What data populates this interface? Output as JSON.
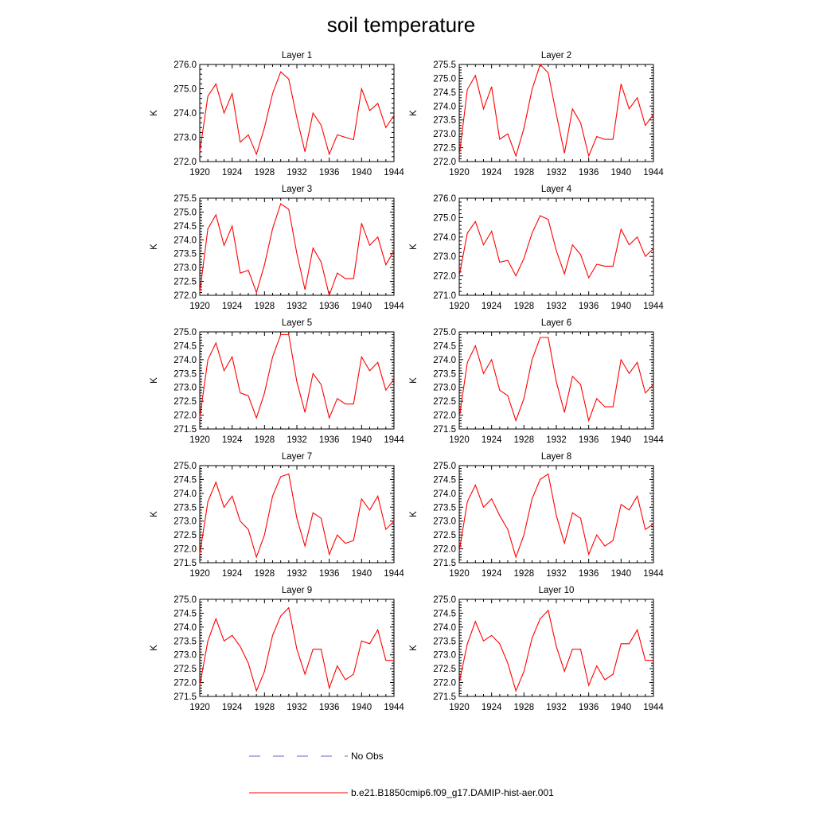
{
  "title": "soil temperature",
  "legend": [
    {
      "label": "No Obs",
      "color": "#6666cc",
      "style": "dashed"
    },
    {
      "label": "b.e21.B1850cmip6.f09_g17.DAMIP-hist-aer.001",
      "color": "#ff0000",
      "style": "solid"
    }
  ],
  "chart_data": [
    {
      "type": "line",
      "title": "Layer 1",
      "ylabel": "K",
      "xlim": [
        1920,
        1944
      ],
      "ylim": [
        272.0,
        276.0
      ],
      "xticks": [
        "1920",
        "1924",
        "1928",
        "1932",
        "1936",
        "1940",
        "1944"
      ],
      "yticks": [
        "272.0",
        "273.0",
        "274.0",
        "275.0",
        "276.0"
      ],
      "x": [
        1920,
        1921,
        1922,
        1923,
        1924,
        1925,
        1926,
        1927,
        1928,
        1929,
        1930,
        1931,
        1932,
        1933,
        1934,
        1935,
        1936,
        1937,
        1938,
        1939,
        1940,
        1941,
        1942,
        1943,
        1944
      ],
      "series": [
        {
          "name": "b.e21.B1850cmip6.f09_g17.DAMIP-hist-aer.001",
          "values": [
            272.4,
            274.7,
            275.2,
            274.0,
            274.8,
            272.8,
            273.1,
            272.3,
            273.4,
            274.8,
            275.7,
            275.4,
            273.8,
            272.4,
            274.0,
            273.5,
            272.3,
            273.1,
            273.0,
            272.9,
            275.0,
            274.1,
            274.4,
            273.4,
            273.9
          ]
        }
      ]
    },
    {
      "type": "line",
      "title": "Layer 2",
      "ylabel": "K",
      "xlim": [
        1920,
        1944
      ],
      "ylim": [
        272.0,
        275.5
      ],
      "xticks": [
        "1920",
        "1924",
        "1928",
        "1932",
        "1936",
        "1940",
        "1944"
      ],
      "yticks": [
        "272.0",
        "272.5",
        "273.0",
        "273.5",
        "274.0",
        "274.5",
        "275.0",
        "275.5"
      ],
      "x": [
        1920,
        1921,
        1922,
        1923,
        1924,
        1925,
        1926,
        1927,
        1928,
        1929,
        1930,
        1931,
        1932,
        1933,
        1934,
        1935,
        1936,
        1937,
        1938,
        1939,
        1940,
        1941,
        1942,
        1943,
        1944
      ],
      "series": [
        {
          "name": "b.e21.B1850cmip6.f09_g17.DAMIP-hist-aer.001",
          "values": [
            272.2,
            274.6,
            275.1,
            273.9,
            274.7,
            272.8,
            273.0,
            272.2,
            273.2,
            274.6,
            275.5,
            275.2,
            273.7,
            272.3,
            273.9,
            273.4,
            272.2,
            272.9,
            272.8,
            272.8,
            274.8,
            273.9,
            274.3,
            273.3,
            273.7
          ]
        }
      ]
    },
    {
      "type": "line",
      "title": "Layer 3",
      "ylabel": "K",
      "xlim": [
        1920,
        1944
      ],
      "ylim": [
        272.0,
        275.5
      ],
      "xticks": [
        "1920",
        "1924",
        "1928",
        "1932",
        "1936",
        "1940",
        "1944"
      ],
      "yticks": [
        "272.0",
        "272.5",
        "273.0",
        "273.5",
        "274.0",
        "274.5",
        "275.0",
        "275.5"
      ],
      "x": [
        1920,
        1921,
        1922,
        1923,
        1924,
        1925,
        1926,
        1927,
        1928,
        1929,
        1930,
        1931,
        1932,
        1933,
        1934,
        1935,
        1936,
        1937,
        1938,
        1939,
        1940,
        1941,
        1942,
        1943,
        1944
      ],
      "series": [
        {
          "name": "b.e21.B1850cmip6.f09_g17.DAMIP-hist-aer.001",
          "values": [
            272.1,
            274.4,
            274.9,
            273.8,
            274.5,
            272.8,
            272.9,
            272.1,
            273.1,
            274.4,
            275.3,
            275.1,
            273.5,
            272.2,
            273.7,
            273.2,
            272.0,
            272.8,
            272.6,
            272.6,
            274.6,
            273.8,
            274.1,
            273.1,
            273.6
          ]
        }
      ]
    },
    {
      "type": "line",
      "title": "Layer 4",
      "ylabel": "K",
      "xlim": [
        1920,
        1944
      ],
      "ylim": [
        271.0,
        276.0
      ],
      "xticks": [
        "1920",
        "1924",
        "1928",
        "1932",
        "1936",
        "1940",
        "1944"
      ],
      "yticks": [
        "271.0",
        "272.0",
        "273.0",
        "274.0",
        "275.0",
        "276.0"
      ],
      "x": [
        1920,
        1921,
        1922,
        1923,
        1924,
        1925,
        1926,
        1927,
        1928,
        1929,
        1930,
        1931,
        1932,
        1933,
        1934,
        1935,
        1936,
        1937,
        1938,
        1939,
        1940,
        1941,
        1942,
        1943,
        1944
      ],
      "series": [
        {
          "name": "b.e21.B1850cmip6.f09_g17.DAMIP-hist-aer.001",
          "values": [
            272.0,
            274.2,
            274.8,
            273.6,
            274.3,
            272.7,
            272.8,
            272.0,
            272.9,
            274.2,
            275.1,
            274.9,
            273.3,
            272.1,
            273.6,
            273.1,
            271.9,
            272.6,
            272.5,
            272.5,
            274.4,
            273.6,
            274.0,
            273.0,
            273.4
          ]
        }
      ]
    },
    {
      "type": "line",
      "title": "Layer 5",
      "ylabel": "K",
      "xlim": [
        1920,
        1944
      ],
      "ylim": [
        271.5,
        275.0
      ],
      "xticks": [
        "1920",
        "1924",
        "1928",
        "1932",
        "1936",
        "1940",
        "1944"
      ],
      "yticks": [
        "271.5",
        "272.0",
        "272.5",
        "273.0",
        "273.5",
        "274.0",
        "274.5",
        "275.0"
      ],
      "x": [
        1920,
        1921,
        1922,
        1923,
        1924,
        1925,
        1926,
        1927,
        1928,
        1929,
        1930,
        1931,
        1932,
        1933,
        1934,
        1935,
        1936,
        1937,
        1938,
        1939,
        1940,
        1941,
        1942,
        1943,
        1944
      ],
      "series": [
        {
          "name": "b.e21.B1850cmip6.f09_g17.DAMIP-hist-aer.001",
          "values": [
            271.9,
            274.0,
            274.6,
            273.6,
            274.1,
            272.8,
            272.7,
            271.9,
            272.8,
            274.1,
            274.9,
            274.9,
            273.2,
            272.1,
            273.5,
            273.1,
            271.9,
            272.6,
            272.4,
            272.4,
            274.1,
            273.6,
            273.9,
            272.9,
            273.3
          ]
        }
      ]
    },
    {
      "type": "line",
      "title": "Layer 6",
      "ylabel": "K",
      "xlim": [
        1920,
        1944
      ],
      "ylim": [
        271.5,
        275.0
      ],
      "xticks": [
        "1920",
        "1924",
        "1928",
        "1932",
        "1936",
        "1940",
        "1944"
      ],
      "yticks": [
        "271.5",
        "272.0",
        "272.5",
        "273.0",
        "273.5",
        "274.0",
        "274.5",
        "275.0"
      ],
      "x": [
        1920,
        1921,
        1922,
        1923,
        1924,
        1925,
        1926,
        1927,
        1928,
        1929,
        1930,
        1931,
        1932,
        1933,
        1934,
        1935,
        1936,
        1937,
        1938,
        1939,
        1940,
        1941,
        1942,
        1943,
        1944
      ],
      "series": [
        {
          "name": "b.e21.B1850cmip6.f09_g17.DAMIP-hist-aer.001",
          "values": [
            271.9,
            273.9,
            274.5,
            273.5,
            274.0,
            272.9,
            272.7,
            271.8,
            272.6,
            274.0,
            274.8,
            274.8,
            273.2,
            272.1,
            273.4,
            273.1,
            271.8,
            272.6,
            272.3,
            272.3,
            274.0,
            273.5,
            273.9,
            272.8,
            273.1
          ]
        }
      ]
    },
    {
      "type": "line",
      "title": "Layer 7",
      "ylabel": "K",
      "xlim": [
        1920,
        1944
      ],
      "ylim": [
        271.5,
        275.0
      ],
      "xticks": [
        "1920",
        "1924",
        "1928",
        "1932",
        "1936",
        "1940",
        "1944"
      ],
      "yticks": [
        "271.5",
        "272.0",
        "272.5",
        "273.0",
        "273.5",
        "274.0",
        "274.5",
        "275.0"
      ],
      "x": [
        1920,
        1921,
        1922,
        1923,
        1924,
        1925,
        1926,
        1927,
        1928,
        1929,
        1930,
        1931,
        1932,
        1933,
        1934,
        1935,
        1936,
        1937,
        1938,
        1939,
        1940,
        1941,
        1942,
        1943,
        1944
      ],
      "series": [
        {
          "name": "b.e21.B1850cmip6.f09_g17.DAMIP-hist-aer.001",
          "values": [
            271.8,
            273.7,
            274.4,
            273.5,
            273.9,
            273.0,
            272.7,
            271.7,
            272.5,
            273.9,
            274.6,
            274.7,
            273.1,
            272.1,
            273.3,
            273.1,
            271.8,
            272.5,
            272.2,
            272.3,
            273.8,
            273.4,
            273.9,
            272.7,
            273.0
          ]
        }
      ]
    },
    {
      "type": "line",
      "title": "Layer 8",
      "ylabel": "K",
      "xlim": [
        1920,
        1944
      ],
      "ylim": [
        271.5,
        275.0
      ],
      "xticks": [
        "1920",
        "1924",
        "1928",
        "1932",
        "1936",
        "1940",
        "1944"
      ],
      "yticks": [
        "271.5",
        "272.0",
        "272.5",
        "273.0",
        "273.5",
        "274.0",
        "274.5",
        "275.0"
      ],
      "x": [
        1920,
        1921,
        1922,
        1923,
        1924,
        1925,
        1926,
        1927,
        1928,
        1929,
        1930,
        1931,
        1932,
        1933,
        1934,
        1935,
        1936,
        1937,
        1938,
        1939,
        1940,
        1941,
        1942,
        1943,
        1944
      ],
      "series": [
        {
          "name": "b.e21.B1850cmip6.f09_g17.DAMIP-hist-aer.001",
          "values": [
            271.9,
            273.7,
            274.3,
            273.5,
            273.8,
            273.2,
            272.7,
            271.7,
            272.5,
            273.8,
            274.5,
            274.7,
            273.2,
            272.2,
            273.3,
            273.1,
            271.8,
            272.5,
            272.1,
            272.3,
            273.6,
            273.4,
            273.9,
            272.7,
            272.9
          ]
        }
      ]
    },
    {
      "type": "line",
      "title": "Layer 9",
      "ylabel": "K",
      "xlim": [
        1920,
        1944
      ],
      "ylim": [
        271.5,
        275.0
      ],
      "xticks": [
        "1920",
        "1924",
        "1928",
        "1932",
        "1936",
        "1940",
        "1944"
      ],
      "yticks": [
        "271.5",
        "272.0",
        "272.5",
        "273.0",
        "273.5",
        "274.0",
        "274.5",
        "275.0"
      ],
      "x": [
        1920,
        1921,
        1922,
        1923,
        1924,
        1925,
        1926,
        1927,
        1928,
        1929,
        1930,
        1931,
        1932,
        1933,
        1934,
        1935,
        1936,
        1937,
        1938,
        1939,
        1940,
        1941,
        1942,
        1943,
        1944
      ],
      "series": [
        {
          "name": "b.e21.B1850cmip6.f09_g17.DAMIP-hist-aer.001",
          "values": [
            271.9,
            273.5,
            274.3,
            273.5,
            273.7,
            273.3,
            272.7,
            271.7,
            272.4,
            273.7,
            274.4,
            274.7,
            273.2,
            272.3,
            273.2,
            273.2,
            271.8,
            272.6,
            272.1,
            272.3,
            273.5,
            273.4,
            273.9,
            272.8,
            272.8
          ]
        }
      ]
    },
    {
      "type": "line",
      "title": "Layer 10",
      "ylabel": "K",
      "xlim": [
        1920,
        1944
      ],
      "ylim": [
        271.5,
        275.0
      ],
      "xticks": [
        "1920",
        "1924",
        "1928",
        "1932",
        "1936",
        "1940",
        "1944"
      ],
      "yticks": [
        "271.5",
        "272.0",
        "272.5",
        "273.0",
        "273.5",
        "274.0",
        "274.5",
        "275.0"
      ],
      "x": [
        1920,
        1921,
        1922,
        1923,
        1924,
        1925,
        1926,
        1927,
        1928,
        1929,
        1930,
        1931,
        1932,
        1933,
        1934,
        1935,
        1936,
        1937,
        1938,
        1939,
        1940,
        1941,
        1942,
        1943,
        1944
      ],
      "series": [
        {
          "name": "b.e21.B1850cmip6.f09_g17.DAMIP-hist-aer.001",
          "values": [
            272.0,
            273.4,
            274.2,
            273.5,
            273.7,
            273.4,
            272.7,
            271.7,
            272.4,
            273.6,
            274.3,
            274.6,
            273.3,
            272.4,
            273.2,
            273.2,
            271.9,
            272.6,
            272.1,
            272.3,
            273.4,
            273.4,
            273.9,
            272.8,
            272.8
          ]
        }
      ]
    }
  ]
}
